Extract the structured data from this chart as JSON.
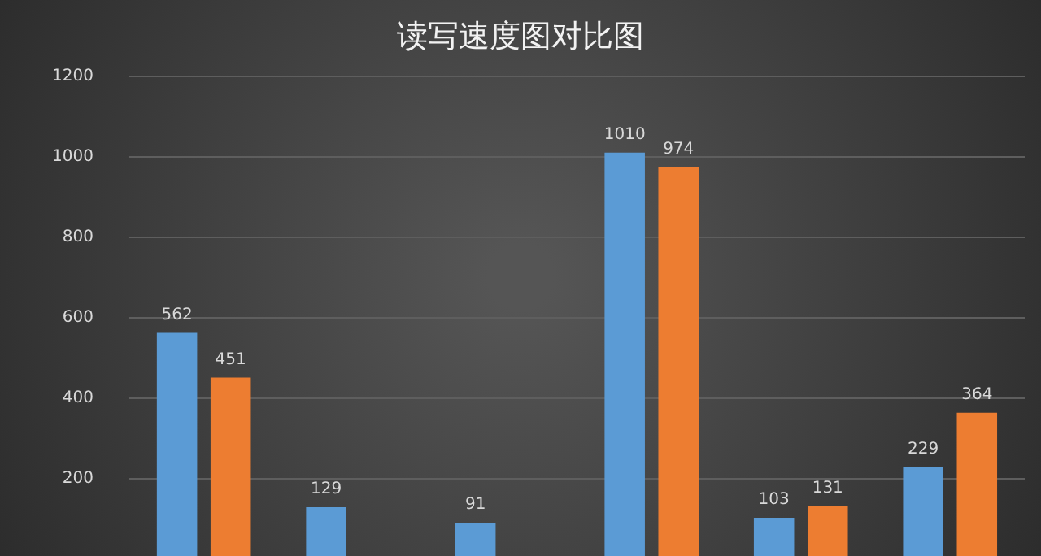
{
  "chart_data": {
    "type": "bar",
    "title": "读写速度图对比图",
    "categories": [
      null,
      null,
      null,
      null,
      null,
      null
    ],
    "series": [
      {
        "color": "#5b9bd5",
        "values": [
          562,
          129,
          91,
          1010,
          103,
          229
        ]
      },
      {
        "color": "#ed7d31",
        "values": [
          451,
          null,
          null,
          974,
          131,
          364
        ]
      }
    ],
    "ylim": [
      0,
      1200
    ],
    "yticks": [
      200,
      400,
      600,
      800,
      1000,
      1200
    ],
    "grid": "y",
    "data_labels": true,
    "legend": false
  }
}
